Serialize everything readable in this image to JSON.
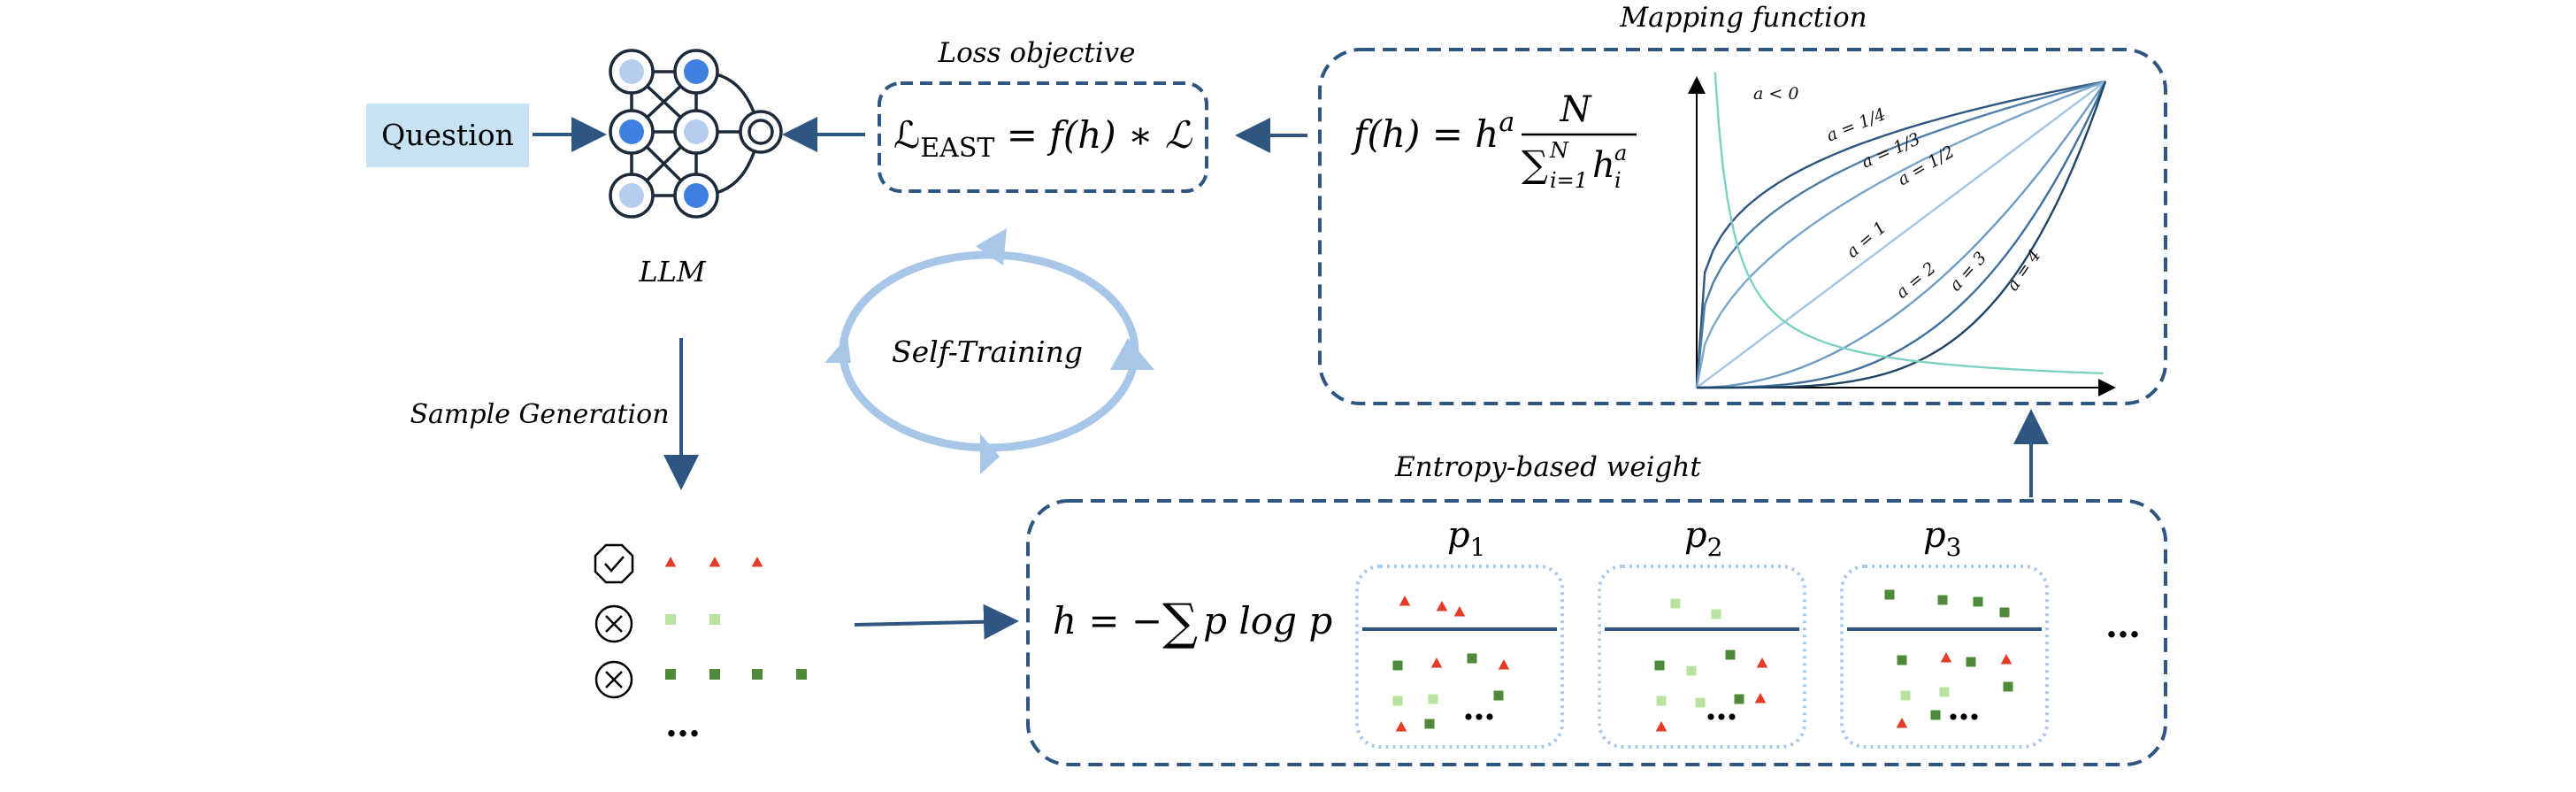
{
  "labels": {
    "question": "Question",
    "llm": "LLM",
    "loss_objective": "Loss objective",
    "mapping_function": "Mapping function",
    "self_training": "Self-Training",
    "sample_generation": "Sample Generation",
    "entropy_weight": "Entropy-based weight"
  },
  "formulas": {
    "loss": {
      "lhs": "ℒ",
      "sub": "EAST",
      "rhs": " = f(h) ∗ ℒ"
    },
    "mapping": {
      "lhs": "f(h) = h",
      "exp": "a",
      "num": "N",
      "den_sum": "∑",
      "den_sup": "N",
      "den_sub": "i=1",
      "den_var": "h",
      "den_var_sub": "i",
      "den_var_sup": "a"
    },
    "entropy": {
      "text": "h = −",
      "sum": "∑",
      "rest": "p log p"
    }
  },
  "plot_labels": [
    "a < 0",
    "a = 1/4",
    "a = 1/3",
    "a = 1/2",
    "a = 1",
    "a = 2",
    "a = 3",
    "a = 4"
  ],
  "groups": [
    {
      "base": "p",
      "sub": "1"
    },
    {
      "base": "p",
      "sub": "2"
    },
    {
      "base": "p",
      "sub": "3"
    }
  ],
  "ellipsis": "…",
  "colors": {
    "dark_blue": "#2e5680",
    "question_fill": "#c7e2f2",
    "node_dark": "#3f7fe0",
    "node_light": "#b7cdf0",
    "cycle": "#a7c6e8",
    "dotted_box": "#a9c8ea",
    "red": "#e23b2a",
    "light_green": "#b9e39e",
    "dark_green": "#4f8a3a",
    "teal": "#7fd1bf"
  }
}
